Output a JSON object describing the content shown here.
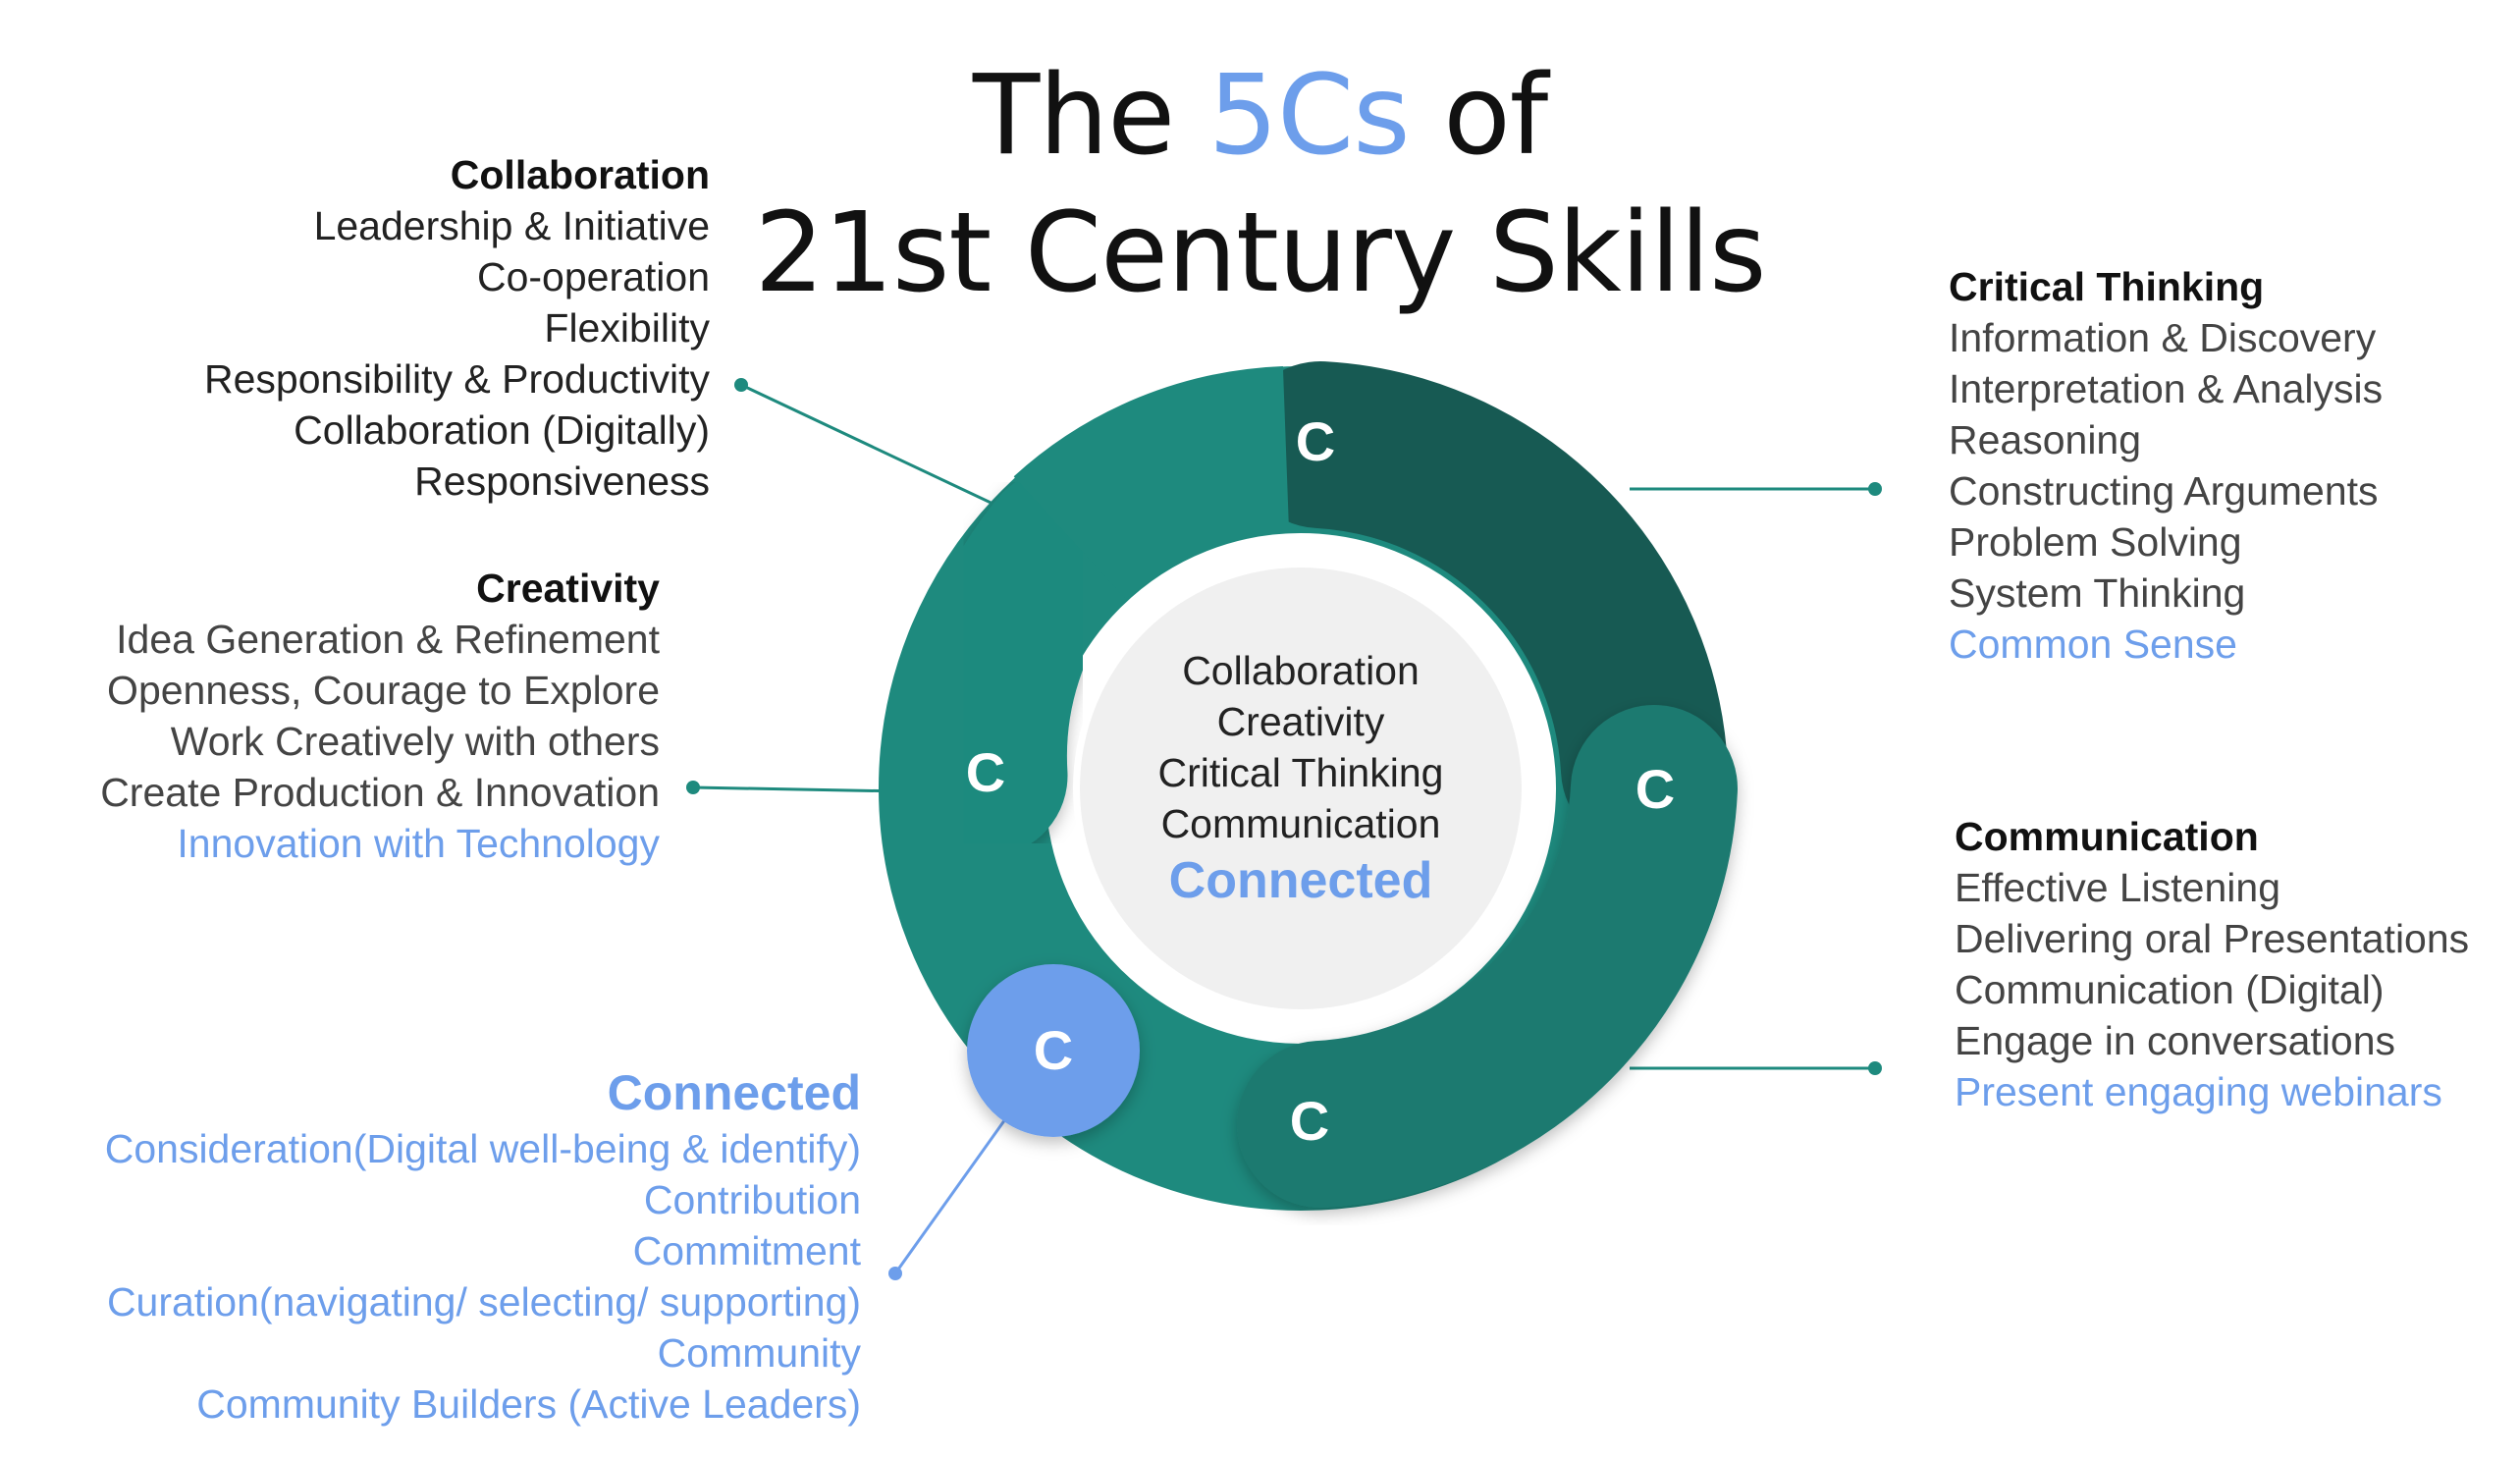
{
  "title": {
    "line1_pre": "The",
    "line1_accent": "5Cs",
    "line1_post": "of",
    "line2": "21st Century Skills"
  },
  "colors": {
    "teal": "#1e8a7e",
    "teal_dark": "#175a53",
    "teal_mid": "#1d7a6f",
    "blue": "#6d9eeb",
    "center_fill": "#f0f0f0"
  },
  "ring_labels": {
    "collaboration": "C",
    "critical_thinking": "C",
    "creativity": "C",
    "communication": "C",
    "connected": "C"
  },
  "center": {
    "items": [
      "Collaboration",
      "Creativity",
      "Critical Thinking",
      "Communication"
    ],
    "highlight": "Connected"
  },
  "collaboration": {
    "heading": "Collaboration",
    "items": [
      "Leadership & Initiative",
      "Co-operation",
      "Flexibility",
      "Responsibility & Productivity",
      "Collaboration (Digitally)",
      "Responsiveness"
    ]
  },
  "creativity": {
    "heading": "Creativity",
    "items": [
      "Idea Generation & Refinement",
      "Openness, Courage to Explore",
      "Work Creatively with others",
      "Create Production & Innovation"
    ],
    "highlight": "Innovation with Technology"
  },
  "critical_thinking": {
    "heading": "Critical Thinking",
    "items": [
      "Information & Discovery",
      "Interpretation & Analysis",
      "Reasoning",
      "Constructing Arguments",
      "Problem Solving",
      "System Thinking"
    ],
    "highlight": "Common Sense"
  },
  "communication": {
    "heading": "Communication",
    "items": [
      "Effective Listening",
      "Delivering oral Presentations",
      "Communication (Digital)",
      "Engage in conversations"
    ],
    "highlight": "Present engaging webinars"
  },
  "connected": {
    "heading": "Connected",
    "items": [
      "Consideration(Digital well-being & identify)",
      "Contribution",
      "Commitment",
      "Curation(navigating/ selecting/ supporting)",
      "Community",
      "Community Builders (Active Leaders)"
    ]
  }
}
